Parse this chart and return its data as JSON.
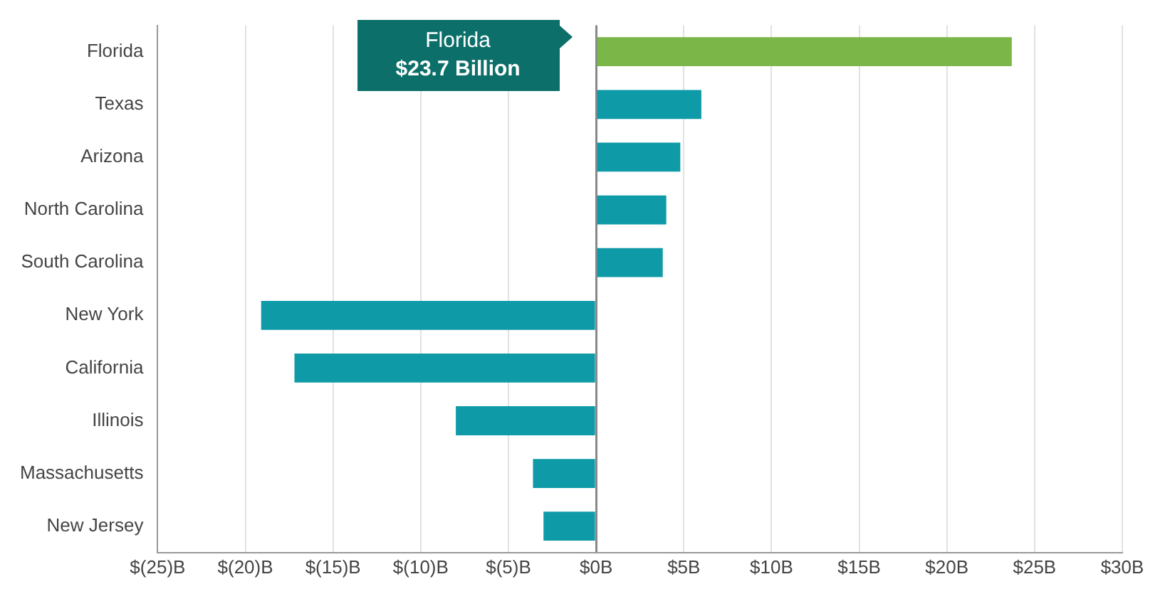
{
  "chart_data": {
    "type": "bar",
    "orientation": "horizontal",
    "categories": [
      "Florida",
      "Texas",
      "Arizona",
      "North Carolina",
      "South Carolina",
      "New York",
      "California",
      "Illinois",
      "Massachusetts",
      "New Jersey"
    ],
    "values": [
      23.7,
      6.0,
      4.8,
      4.0,
      3.8,
      -19.1,
      -17.2,
      -8.0,
      -3.6,
      -3.0
    ],
    "colors": [
      "#7ab648",
      "#0e9aa7",
      "#0e9aa7",
      "#0e9aa7",
      "#0e9aa7",
      "#0e9aa7",
      "#0e9aa7",
      "#0e9aa7",
      "#0e9aa7",
      "#0e9aa7"
    ],
    "xlim": [
      -25,
      30
    ],
    "xticks": [
      {
        "value": -25,
        "label": "$(25)B"
      },
      {
        "value": -20,
        "label": "$(20)B"
      },
      {
        "value": -15,
        "label": "$(15)B"
      },
      {
        "value": -10,
        "label": "$(10)B"
      },
      {
        "value": -5,
        "label": "$(5)B"
      },
      {
        "value": 0,
        "label": "$0B"
      },
      {
        "value": 5,
        "label": "$5B"
      },
      {
        "value": 10,
        "label": "$10B"
      },
      {
        "value": 15,
        "label": "$15B"
      },
      {
        "value": 20,
        "label": "$20B"
      },
      {
        "value": 25,
        "label": "$25B"
      },
      {
        "value": 30,
        "label": "$30B"
      }
    ],
    "grid": "x",
    "legend": false,
    "annotations": [
      "Florida\n$23.7 Billion"
    ]
  }
}
